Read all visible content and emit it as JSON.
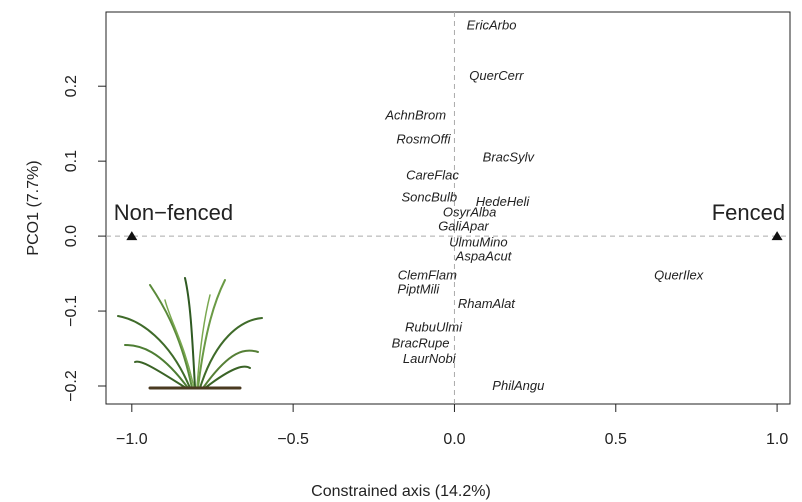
{
  "chart_data": {
    "type": "scatter",
    "x_label": "Constrained axis (14.2%)",
    "y_label": "PCO1 (7.7%)",
    "xlim": [
      -1.08,
      1.04
    ],
    "ylim": [
      -0.224,
      0.299
    ],
    "xticks": [
      {
        "value": -1,
        "label": "−1.0"
      },
      {
        "value": -0.5,
        "label": "−0.5"
      },
      {
        "value": 0,
        "label": "0.0"
      },
      {
        "value": 0.5,
        "label": "0.5"
      },
      {
        "value": 1,
        "label": "1.0"
      }
    ],
    "yticks": [
      {
        "value": -0.2,
        "label": "−0.2"
      },
      {
        "value": -0.1,
        "label": "−0.1"
      },
      {
        "value": 0,
        "label": "0.0"
      },
      {
        "value": 0.1,
        "label": "0.1"
      },
      {
        "value": 0.2,
        "label": "0.2"
      }
    ],
    "reference_lines": {
      "x": [
        0
      ],
      "y": [
        0
      ]
    },
    "series": [
      {
        "color": "#222222",
        "labels": [
          "EricArbo",
          "QuerCerr",
          "AchnBrom",
          "RosmOffi",
          "BracSylv",
          "CareFlac",
          "SoncBulb",
          "HedeHeli",
          "OsyrAlba",
          "GaliApar",
          "UlmuMino",
          "AspaAcut",
          "ClemFlam",
          "PiptMili",
          "QuerIlex",
          "RhamAlat",
          "RubuUlmi",
          "BracRupe",
          "LaurNobi",
          "PhilAngu"
        ],
        "x": [
          0.115,
          0.13,
          -0.12,
          -0.096,
          0.167,
          -0.068,
          -0.078,
          0.149,
          0.047,
          0.028,
          0.074,
          0.09,
          -0.084,
          -0.112,
          0.695,
          0.099,
          -0.065,
          -0.105,
          -0.078,
          0.198
        ],
        "values": [
          0.28,
          0.213,
          0.16,
          0.128,
          0.104,
          0.08,
          0.051,
          0.045,
          0.031,
          0.012,
          -0.009,
          -0.028,
          -0.053,
          -0.072,
          -0.053,
          -0.091,
          -0.123,
          -0.144,
          -0.165,
          -0.201
        ]
      }
    ],
    "markers": [
      {
        "label": "Non−fenced",
        "x": -1,
        "y": 0
      },
      {
        "label": "Fenced",
        "x": 1,
        "y": 0
      }
    ]
  }
}
